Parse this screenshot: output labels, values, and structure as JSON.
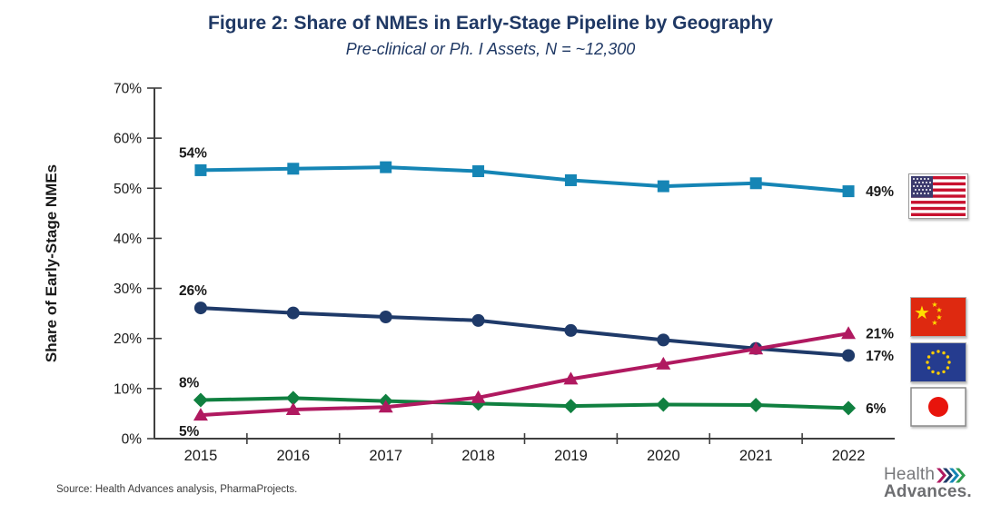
{
  "chart_data": {
    "type": "line",
    "title": "Figure 2: Share of NMEs in Early-Stage Pipeline by Geography",
    "subtitle": "Pre-clinical or Ph. I Assets, N = ~12,300",
    "ylabel": "Share of Early-Stage NMEs",
    "xlabel": "",
    "ylim": [
      0,
      70
    ],
    "ytick_step": 10,
    "ytick_labels": [
      "0%",
      "10%",
      "20%",
      "30%",
      "40%",
      "50%",
      "60%",
      "70%"
    ],
    "categories": [
      "2015",
      "2016",
      "2017",
      "2018",
      "2019",
      "2020",
      "2021",
      "2022"
    ],
    "grid": false,
    "legend_position": "right-flags",
    "series": [
      {
        "name": "United States",
        "flag": "us",
        "color": "#1585B5",
        "marker": "square",
        "values": [
          53.6,
          53.9,
          54.2,
          53.4,
          51.6,
          50.4,
          51.0,
          49.4
        ],
        "first_label": "54%",
        "first_label_position": "above",
        "last_label": "49%"
      },
      {
        "name": "European Union",
        "flag": "eu",
        "color": "#1F3A69",
        "marker": "circle",
        "values": [
          26.1,
          25.1,
          24.3,
          23.6,
          21.6,
          19.7,
          18.0,
          16.6
        ],
        "first_label": "26%",
        "first_label_position": "above",
        "last_label": "17%"
      },
      {
        "name": "Japan",
        "flag": "jp",
        "color": "#108040",
        "marker": "diamond",
        "values": [
          7.7,
          8.1,
          7.5,
          7.0,
          6.5,
          6.8,
          6.7,
          6.1
        ],
        "first_label": "8%",
        "first_label_position": "above",
        "last_label": "6%"
      },
      {
        "name": "China",
        "flag": "cn",
        "color": "#B01960",
        "marker": "triangle",
        "values": [
          4.7,
          5.8,
          6.3,
          8.2,
          11.9,
          14.9,
          17.9,
          21.0
        ],
        "first_label": "5%",
        "first_label_position": "below",
        "last_label": "21%"
      }
    ]
  },
  "footer": {
    "source": "Source:  Health Advances analysis, PharmaProjects.",
    "logo": {
      "line1": "Health",
      "line2": "Advances.",
      "chevron_colors": [
        "#B01960",
        "#1F3A69",
        "#1585B5",
        "#2E9E4F"
      ]
    }
  }
}
